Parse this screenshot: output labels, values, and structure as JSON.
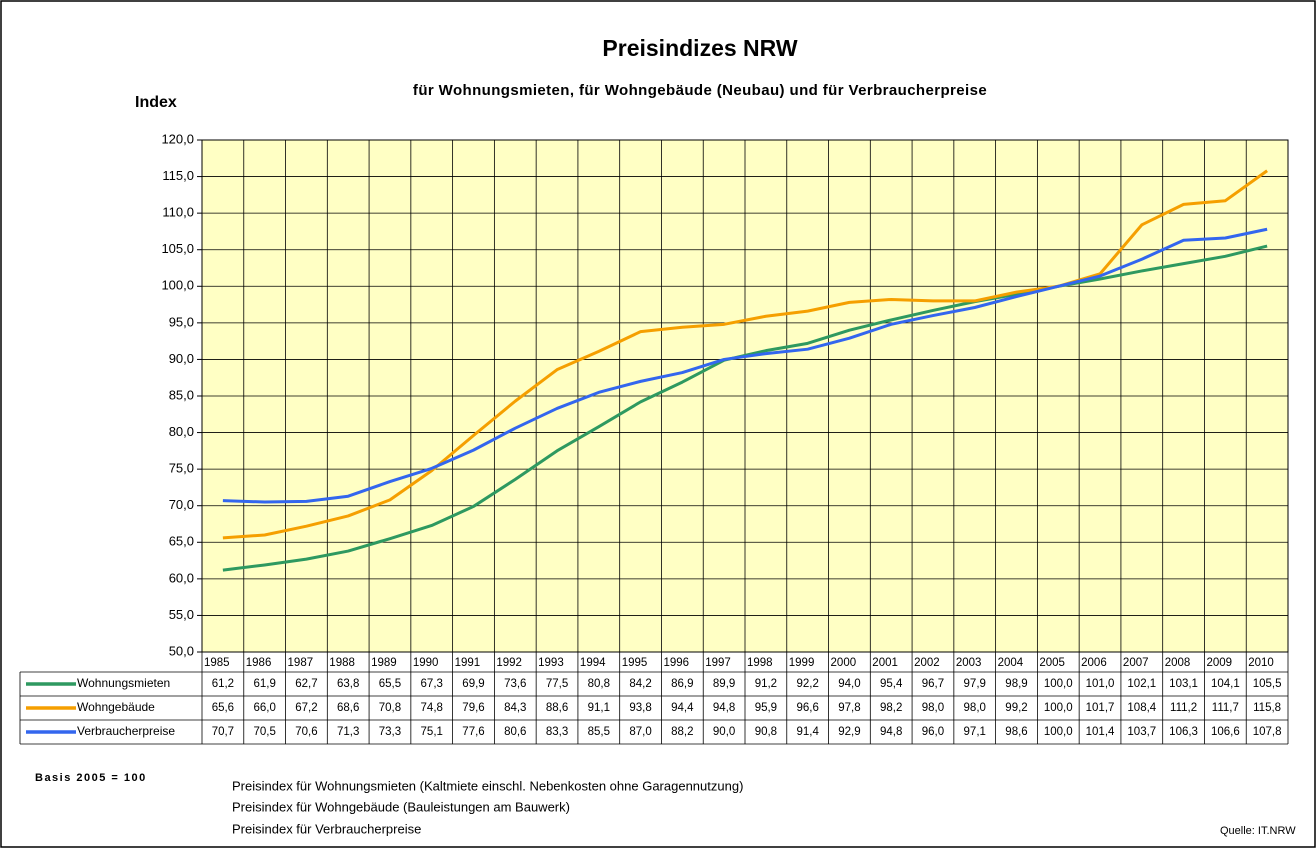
{
  "chart_data": {
    "type": "line",
    "title": "Preisindizes NRW",
    "subtitle": "für Wohnungsmieten, für Wohngebäude (Neubau) und für Verbraucherpreise",
    "y_label": "Index",
    "categories": [
      "1985",
      "1986",
      "1987",
      "1988",
      "1989",
      "1990",
      "1991",
      "1992",
      "1993",
      "1994",
      "1995",
      "1996",
      "1997",
      "1998",
      "1999",
      "2000",
      "2001",
      "2002",
      "2003",
      "2004",
      "2005",
      "2006",
      "2007",
      "2008",
      "2009",
      "2010"
    ],
    "series": [
      {
        "name": "Wohnungsmieten",
        "color": "#2e9960",
        "values": [
          61.2,
          61.9,
          62.7,
          63.8,
          65.5,
          67.3,
          69.9,
          73.6,
          77.5,
          80.8,
          84.2,
          86.9,
          89.9,
          91.2,
          92.2,
          94.0,
          95.4,
          96.7,
          97.9,
          98.9,
          100.0,
          101.0,
          102.1,
          103.1,
          104.1,
          105.5
        ],
        "value_labels": [
          "61,2",
          "61,9",
          "62,7",
          "63,8",
          "65,5",
          "67,3",
          "69,9",
          "73,6",
          "77,5",
          "80,8",
          "84,2",
          "86,9",
          "89,9",
          "91,2",
          "92,2",
          "94,0",
          "95,4",
          "96,7",
          "97,9",
          "98,9",
          "100,0",
          "101,0",
          "102,1",
          "103,1",
          "104,1",
          "105,5"
        ]
      },
      {
        "name": "Wohngebäude",
        "color": "#f59f00",
        "values": [
          65.6,
          66.0,
          67.2,
          68.6,
          70.8,
          74.8,
          79.6,
          84.3,
          88.6,
          91.1,
          93.8,
          94.4,
          94.8,
          95.9,
          96.6,
          97.8,
          98.2,
          98.0,
          98.0,
          99.2,
          100.0,
          101.7,
          108.4,
          111.2,
          111.7,
          115.8
        ],
        "value_labels": [
          "65,6",
          "66,0",
          "67,2",
          "68,6",
          "70,8",
          "74,8",
          "79,6",
          "84,3",
          "88,6",
          "91,1",
          "93,8",
          "94,4",
          "94,8",
          "95,9",
          "96,6",
          "97,8",
          "98,2",
          "98,0",
          "98,0",
          "99,2",
          "100,0",
          "101,7",
          "108,4",
          "111,2",
          "111,7",
          "115,8"
        ]
      },
      {
        "name": "Verbraucherpreise",
        "color": "#3366ee",
        "values": [
          70.7,
          70.5,
          70.6,
          71.3,
          73.3,
          75.1,
          77.6,
          80.6,
          83.3,
          85.5,
          87.0,
          88.2,
          90.0,
          90.8,
          91.4,
          92.9,
          94.8,
          96.0,
          97.1,
          98.6,
          100.0,
          101.4,
          103.7,
          106.3,
          106.6,
          107.8
        ],
        "value_labels": [
          "70,7",
          "70,5",
          "70,6",
          "71,3",
          "73,3",
          "75,1",
          "77,6",
          "80,6",
          "83,3",
          "85,5",
          "87,0",
          "88,2",
          "90,0",
          "90,8",
          "91,4",
          "92,9",
          "94,8",
          "96,0",
          "97,1",
          "98,6",
          "100,0",
          "101,4",
          "103,7",
          "106,3",
          "106,6",
          "107,8"
        ]
      }
    ],
    "ylim": [
      50,
      120
    ],
    "yticks": [
      {
        "value": 50,
        "label": "50,0"
      },
      {
        "value": 55,
        "label": "55,0"
      },
      {
        "value": 60,
        "label": "60,0"
      },
      {
        "value": 65,
        "label": "65,0"
      },
      {
        "value": 70,
        "label": "70,0"
      },
      {
        "value": 75,
        "label": "75,0"
      },
      {
        "value": 80,
        "label": "80,0"
      },
      {
        "value": 85,
        "label": "85,0"
      },
      {
        "value": 90,
        "label": "90,0"
      },
      {
        "value": 95,
        "label": "95,0"
      },
      {
        "value": 100,
        "label": "100,0"
      },
      {
        "value": 105,
        "label": "105,0"
      },
      {
        "value": 110,
        "label": "110,0"
      },
      {
        "value": 115,
        "label": "115,0"
      },
      {
        "value": 120,
        "label": "120,0"
      }
    ],
    "grid": true,
    "plot_background": "#ffffc4",
    "basis": "Basis 2005 = 100",
    "notes": [
      "Preisindex für Wohnungsmieten (Kaltmiete einschl. Nebenkosten ohne Garagennutzung)",
      "Preisindex für Wohngebäude (Bauleistungen am Bauwerk)",
      "Preisindex für Verbraucherpreise"
    ],
    "source": "Quelle: IT.NRW"
  }
}
